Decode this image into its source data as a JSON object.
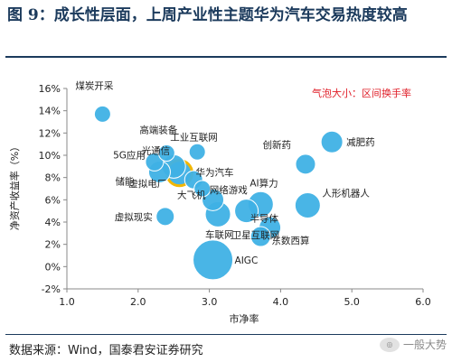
{
  "figure": {
    "title": "图 9：成长性层面，上周产业性主题华为汽车交易热度较高",
    "source": "数据来源：Wind，国泰君安证券研究",
    "watermark": "一般大势"
  },
  "chart_data": {
    "type": "scatter",
    "xlabel": "市净率",
    "ylabel": "净资产收益率（%）",
    "xlim": [
      1.0,
      6.0
    ],
    "ylim": [
      -2,
      16
    ],
    "x_ticks": [
      "1.0",
      "2.0",
      "3.0",
      "4.0",
      "5.0",
      "6.0"
    ],
    "y_ticks": [
      "-2%",
      "0%",
      "2%",
      "4%",
      "6%",
      "8%",
      "10%",
      "12%",
      "14%",
      "16%"
    ],
    "annotation": "气泡大小：区间换手率",
    "highlight_color": "#f2b705",
    "bubble_color": "#3fb1e5",
    "points": [
      {
        "label": "煤炭开采",
        "x": 1.5,
        "y": 13.7,
        "r": 9
      },
      {
        "label": "高端装备",
        "x": 2.4,
        "y": 10.2,
        "r": 9
      },
      {
        "label": "工业互联网",
        "x": 2.83,
        "y": 10.3,
        "r": 9
      },
      {
        "label": "5G应用",
        "x": 2.23,
        "y": 9.4,
        "r": 10
      },
      {
        "label": "光通信",
        "x": 2.5,
        "y": 9.0,
        "r": 13
      },
      {
        "label": "储能",
        "x": 2.3,
        "y": 8.5,
        "r": 12
      },
      {
        "label": "华为汽车",
        "x": 2.58,
        "y": 8.4,
        "r": 14,
        "highlight": true
      },
      {
        "label": "虚拟电厂",
        "x": 2.78,
        "y": 7.8,
        "r": 10
      },
      {
        "label": "网络游戏",
        "x": 2.9,
        "y": 7.0,
        "r": 9
      },
      {
        "label": "大飞机",
        "x": 3.05,
        "y": 6.0,
        "r": 12
      },
      {
        "label": "创新药",
        "x": 4.35,
        "y": 9.2,
        "r": 11
      },
      {
        "label": "减肥药",
        "x": 4.72,
        "y": 11.2,
        "r": 12
      },
      {
        "label": "AI算力",
        "x": 3.72,
        "y": 5.6,
        "r": 14
      },
      {
        "label": "人形机器人",
        "x": 4.38,
        "y": 5.5,
        "r": 14
      },
      {
        "label": "半导体",
        "x": 3.52,
        "y": 5.0,
        "r": 13
      },
      {
        "label": "卫星互联网",
        "x": 3.85,
        "y": 3.5,
        "r": 12
      },
      {
        "label": "东数西算",
        "x": 3.72,
        "y": 2.7,
        "r": 11
      },
      {
        "label": "虚拟现实",
        "x": 2.38,
        "y": 4.5,
        "r": 10
      },
      {
        "label": "车联网",
        "x": 3.12,
        "y": 4.7,
        "r": 14
      },
      {
        "label": "AIGC",
        "x": 3.05,
        "y": 0.6,
        "r": 22
      }
    ]
  }
}
